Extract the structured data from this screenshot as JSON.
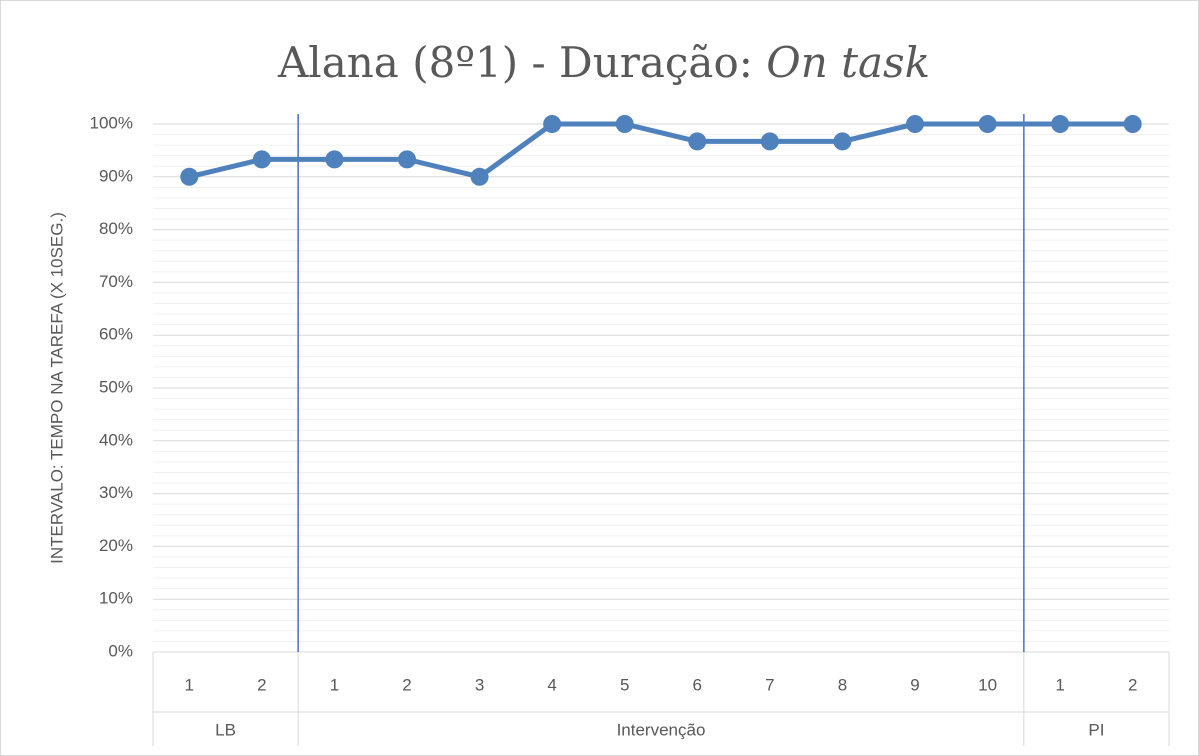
{
  "chart_data": {
    "type": "line",
    "title": "Alana (8º1) - Duração:",
    "title_emphasis": "On task",
    "y_label": "INTERVALO: TEMPO NA TAREFA (X 10SEG.)",
    "categories": [
      "1",
      "2",
      "1",
      "2",
      "3",
      "4",
      "5",
      "6",
      "7",
      "8",
      "9",
      "10",
      "1",
      "2"
    ],
    "groups": [
      {
        "label": "LB",
        "count": 2
      },
      {
        "label": "Intervenção",
        "count": 10
      },
      {
        "label": "PI",
        "count": 2
      }
    ],
    "values": [
      90,
      93.3,
      93.3,
      93.3,
      90,
      100,
      100,
      96.7,
      96.7,
      96.7,
      100,
      100,
      100,
      100
    ],
    "color": "#4f81bd",
    "phase_line_color": "#4472c4",
    "ylim": [
      0,
      100
    ],
    "yticks": [
      {
        "value": 0,
        "label": "0%"
      },
      {
        "value": 10,
        "label": "10%"
      },
      {
        "value": 20,
        "label": "20%"
      },
      {
        "value": 30,
        "label": "30%"
      },
      {
        "value": 40,
        "label": "40%"
      },
      {
        "value": 50,
        "label": "50%"
      },
      {
        "value": 60,
        "label": "60%"
      },
      {
        "value": 70,
        "label": "70%"
      },
      {
        "value": 80,
        "label": "80%"
      },
      {
        "value": 90,
        "label": "90%"
      },
      {
        "value": 100,
        "label": "100%"
      }
    ],
    "grid": true
  }
}
